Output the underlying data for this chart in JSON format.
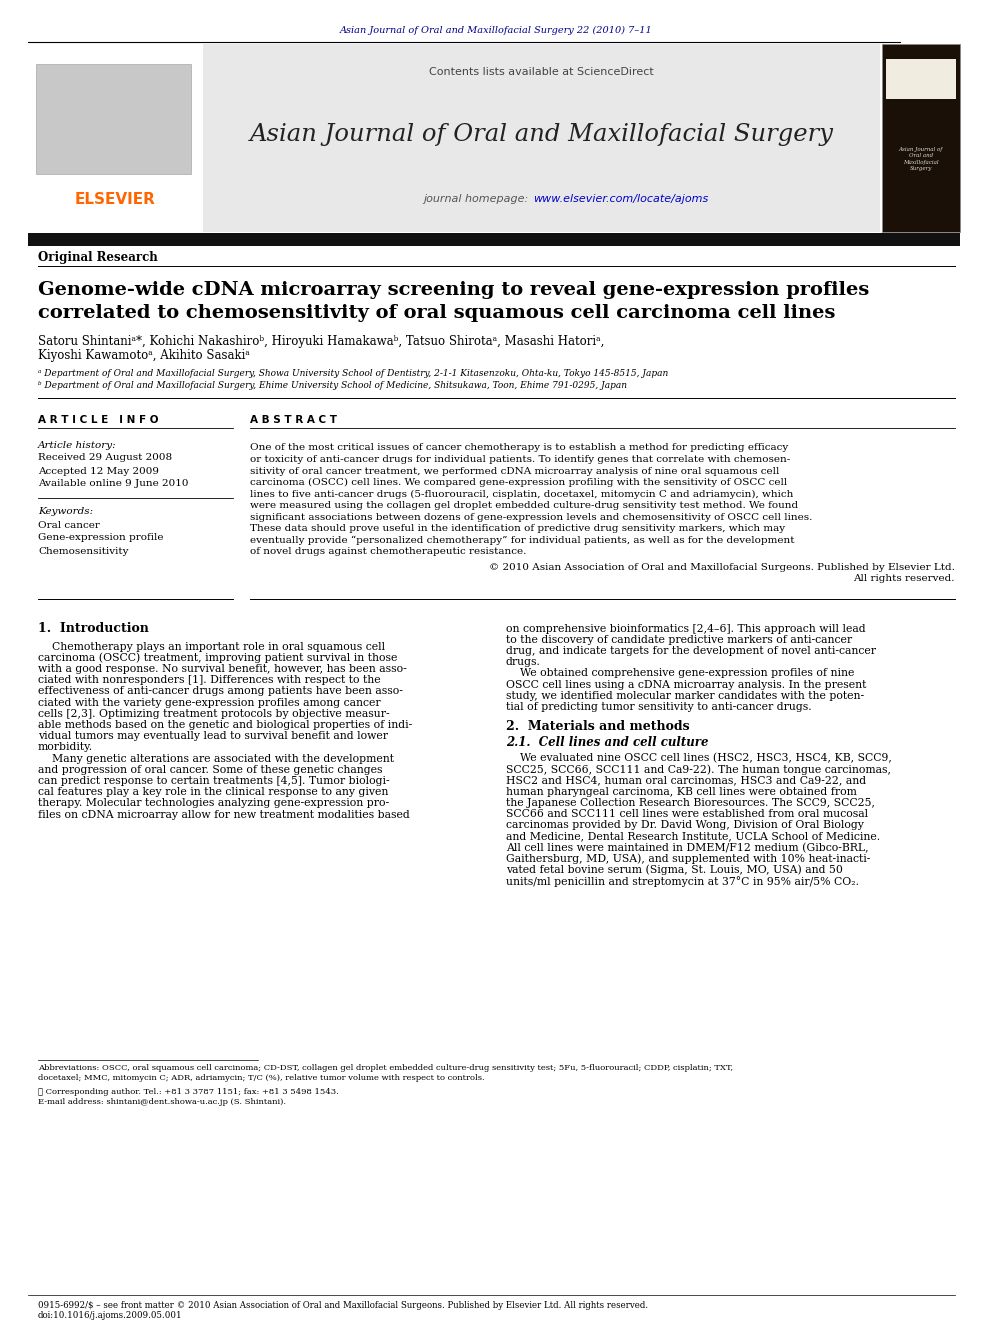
{
  "top_header_text": "Asian Journal of Oral and Maxillofacial Surgery 22 (2010) 7–11",
  "top_header_color": "#00008B",
  "contents_text": "Contents lists available at ScienceDirect",
  "journal_title": "Asian Journal of Oral and Maxillofacial Surgery",
  "journal_homepage_label": "journal homepage: ",
  "journal_url": "www.elsevier.com/locate/ajoms",
  "elsevier_color": "#FF6600",
  "section_label": "Original Research",
  "paper_title_line1": "Genome-wide cDNA microarray screening to reveal gene-expression profiles",
  "paper_title_line2": "correlated to chemosensitivity of oral squamous cell carcinoma cell lines",
  "authors_line1": "Satoru Shintaniᵃ*, Kohichi Nakashiroᵇ, Hiroyuki Hamakawaᵇ, Tatsuo Shirotaᵃ, Masashi Hatoriᵃ,",
  "authors_line2": "Kiyoshi Kawamotoᵃ, Akihito Sasakiᵃ",
  "affil_a": "ᵃ Department of Oral and Maxillofacial Surgery, Showa University School of Dentistry, 2-1-1 Kitasenzoku, Ohta-ku, Tokyo 145-8515, Japan",
  "affil_b": "ᵇ Department of Oral and Maxillofacial Surgery, Ehime University School of Medicine, Shitsukawa, Toon, Ehime 791-0295, Japan",
  "article_info_title": "A R T I C L E   I N F O",
  "article_history_label": "Article history:",
  "received": "Received 29 August 2008",
  "accepted": "Accepted 12 May 2009",
  "available": "Available online 9 June 2010",
  "keywords_label": "Keywords:",
  "keyword1": "Oral cancer",
  "keyword2": "Gene-expression profile",
  "keyword3": "Chemosensitivity",
  "abstract_title": "A B S T R A C T",
  "abstract_lines": [
    "One of the most critical issues of cancer chemotherapy is to establish a method for predicting efficacy",
    "or toxicity of anti-cancer drugs for individual patients. To identify genes that correlate with chemosen-",
    "sitivity of oral cancer treatment, we performed cDNA microarray analysis of nine oral squamous cell",
    "carcinoma (OSCC) cell lines. We compared gene-expression profiling with the sensitivity of OSCC cell",
    "lines to five anti-cancer drugs (5-fluorouracil, cisplatin, docetaxel, mitomycin C and adriamycin), which",
    "were measured using the collagen gel droplet embedded culture-drug sensitivity test method. We found",
    "significant associations between dozens of gene-expression levels and chemosensitivity of OSCC cell lines.",
    "These data should prove useful in the identification of predictive drug sensitivity markers, which may",
    "eventually provide “personalized chemotherapy” for individual patients, as well as for the development",
    "of novel drugs against chemotherapeutic resistance."
  ],
  "copyright_line1": "© 2010 Asian Association of Oral and Maxillofacial Surgeons. Published by Elsevier Ltd.",
  "copyright_line2": "All rights reserved.",
  "intro_heading": "1.  Introduction",
  "intro_col1_lines": [
    "    Chemotherapy plays an important role in oral squamous cell",
    "carcinoma (OSCC) treatment, improving patient survival in those",
    "with a good response. No survival benefit, however, has been asso-",
    "ciated with nonresponders [1]. Differences with respect to the",
    "effectiveness of anti-cancer drugs among patients have been asso-",
    "ciated with the variety gene-expression profiles among cancer",
    "cells [2,3]. Optimizing treatment protocols by objective measur-",
    "able methods based on the genetic and biological properties of indi-",
    "vidual tumors may eventually lead to survival benefit and lower",
    "morbidity.",
    "    Many genetic alterations are associated with the development",
    "and progression of oral cancer. Some of these genetic changes",
    "can predict response to certain treatments [4,5]. Tumor biologi-",
    "cal features play a key role in the clinical response to any given",
    "therapy. Molecular technologies analyzing gene-expression pro-",
    "files on cDNA microarray allow for new treatment modalities based"
  ],
  "intro_col2_lines": [
    "on comprehensive bioinformatics [2,4–6]. This approach will lead",
    "to the discovery of candidate predictive markers of anti-cancer",
    "drug, and indicate targets for the development of novel anti-cancer",
    "drugs.",
    "    We obtained comprehensive gene-expression profiles of nine",
    "OSCC cell lines using a cDNA microarray analysis. In the present",
    "study, we identified molecular marker candidates with the poten-",
    "tial of predicting tumor sensitivity to anti-cancer drugs."
  ],
  "methods_heading": "2.  Materials and methods",
  "methods_sub": "2.1.  Cell lines and cell culture",
  "methods_col2_lines": [
    "    We evaluated nine OSCC cell lines (HSC2, HSC3, HSC4, KB, SCC9,",
    "SCC25, SCC66, SCC111 and Ca9-22). The human tongue carcinomas,",
    "HSC2 and HSC4, human oral carcinomas, HSC3 and Ca9-22, and",
    "human pharyngeal carcinoma, KB cell lines were obtained from",
    "the Japanese Collection Research Bioresources. The SCC9, SCC25,",
    "SCC66 and SCC111 cell lines were established from oral mucosal",
    "carcinomas provided by Dr. David Wong, Division of Oral Biology",
    "and Medicine, Dental Research Institute, UCLA School of Medicine.",
    "All cell lines were maintained in DMEM/F12 medium (Gibco-BRL,",
    "Gaithersburg, MD, USA), and supplemented with 10% heat-inacti-",
    "vated fetal bovine serum (Sigma, St. Louis, MO, USA) and 50",
    "units/ml penicillin and streptomycin at 37°C in 95% air/5% CO₂."
  ],
  "footnote_abbrev_lines": [
    "Abbreviations: OSCC, oral squamous cell carcinoma; CD-DST, collagen gel droplet embedded culture-drug sensitivity test; 5Fu, 5-fluorouracil; CDDP, cisplatin; TXT,",
    "docetaxel; MMC, mitomycin C; ADR, adriamycin; T/C (%), relative tumor volume with respect to controls."
  ],
  "footnote_star": "★ Corresponding author. Tel.: +81 3 3787 1151; fax: +81 3 5498 1543.",
  "footnote_email": "E-mail address: shintani@dent.showa-u.ac.jp (S. Shintani).",
  "bottom_text": "0915-6992/$ – see front matter © 2010 Asian Association of Oral and Maxillofacial Surgeons. Published by Elsevier Ltd. All rights reserved.",
  "doi_text": "doi:10.1016/j.ajoms.2009.05.001",
  "bg_color": "#FFFFFF",
  "gray_bg": "#E8E8E8",
  "dark_bar": "#111111",
  "url_color": "#0000CC",
  "header_blue": "#00008B"
}
